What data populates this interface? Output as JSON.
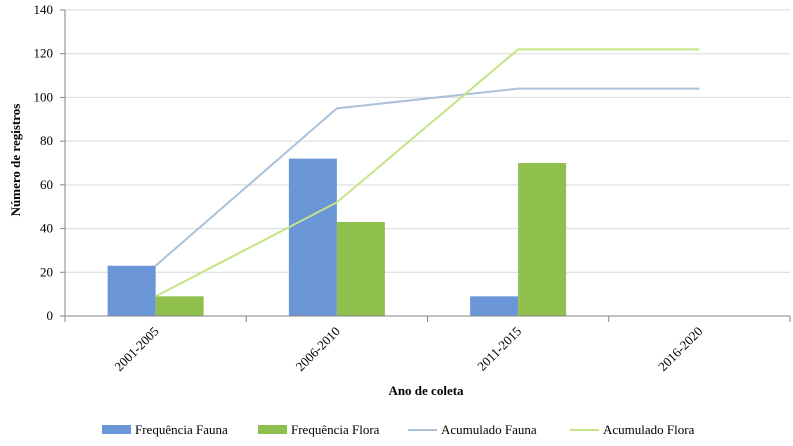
{
  "chart_data": {
    "type": "bar",
    "categories": [
      "2001-2005",
      "2006-2010",
      "2011-2015",
      "2016-2020"
    ],
    "series": [
      {
        "name": "Frequência Fauna",
        "kind": "bar",
        "color": "#6a95d6",
        "values": [
          23,
          72,
          9,
          0
        ]
      },
      {
        "name": "Frequência Flora",
        "kind": "bar",
        "color": "#8fbf4d",
        "values": [
          9,
          43,
          70,
          0
        ]
      },
      {
        "name": "Acumulado Fauna",
        "kind": "line",
        "color": "#aac1da",
        "values": [
          23,
          95,
          104,
          104
        ]
      },
      {
        "name": "Acumulado Flora",
        "kind": "line",
        "color": "#c2e584",
        "values": [
          9,
          52,
          122,
          122
        ]
      }
    ],
    "xlabel": "Ano de coleta",
    "ylabel": "Número de registros",
    "ylim": [
      0,
      140
    ],
    "yticks": [
      0,
      20,
      40,
      60,
      80,
      100,
      120,
      140
    ],
    "grid": true,
    "legend_position": "bottom"
  }
}
